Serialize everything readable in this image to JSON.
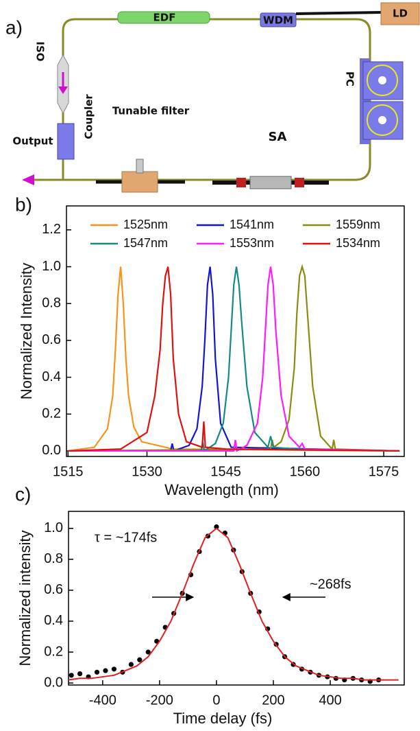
{
  "panels": [
    "a)",
    "b)",
    "c)"
  ],
  "diagram": {
    "labels": [
      "EDF",
      "WDM",
      "LD",
      "ISO",
      "PC",
      "Coupler",
      "Tunable filter",
      "Output",
      "SA"
    ]
  },
  "chart_data": [
    {
      "type": "line",
      "xlabel": "Wavelength (nm)",
      "ylabel": "Normalized Intensity",
      "xlim": [
        1514.7,
        1578.9
      ],
      "ylim": [
        -0.03,
        1.33
      ],
      "xticks": [
        1515,
        1530,
        1545,
        1560,
        1575
      ],
      "yticks": [
        {
          "value": 0,
          "label": "0.0"
        },
        0.2,
        0.4,
        0.6,
        0.8,
        {
          "value": 1,
          "label": "1.0"
        },
        1.2
      ],
      "series": [
        {
          "name": "1525nm",
          "color": "#f7931e",
          "x": [
            1515,
            1520,
            1522.5,
            1523.5,
            1524,
            1524.5,
            1525,
            1525.5,
            1526,
            1526.5,
            1527.5,
            1529,
            1535,
            1578
          ],
          "values": [
            0,
            0.02,
            0.12,
            0.3,
            0.55,
            0.85,
            1.0,
            0.8,
            0.5,
            0.3,
            0.13,
            0.05,
            0.01,
            0
          ]
        },
        {
          "name": "1541nm",
          "color": "#1414d2",
          "x": [
            1515,
            1534.5,
            1534.8,
            1535.1,
            1538,
            1539.5,
            1540.5,
            1541,
            1541.5,
            1542,
            1542.5,
            1543,
            1544,
            1546,
            1578
          ],
          "values": [
            0,
            0,
            0.04,
            0,
            0.03,
            0.12,
            0.35,
            0.6,
            0.9,
            1.0,
            0.85,
            0.5,
            0.15,
            0.02,
            0
          ]
        },
        {
          "name": "1559nm",
          "color": "#8b8b12",
          "x": [
            1515,
            1553.5,
            1553.8,
            1554.1,
            1555.5,
            1557,
            1558,
            1558.5,
            1559,
            1559.5,
            1560,
            1560.5,
            1561.5,
            1563,
            1565.2,
            1565.5,
            1565.8,
            1578
          ],
          "values": [
            0,
            0.01,
            0.06,
            0.02,
            0.05,
            0.17,
            0.45,
            0.75,
            0.95,
            1.0,
            0.95,
            0.75,
            0.35,
            0.08,
            0.01,
            0.06,
            0.01,
            0
          ]
        },
        {
          "name": "1547nm",
          "color": "#138a84",
          "x": [
            1515,
            1540.3,
            1540.6,
            1540.9,
            1543,
            1544.5,
            1545.5,
            1546,
            1546.5,
            1547,
            1547.5,
            1548,
            1549,
            1550.5,
            1553,
            1553.5,
            1554,
            1558,
            1578
          ],
          "values": [
            0,
            0,
            0.05,
            0,
            0.04,
            0.15,
            0.4,
            0.65,
            0.9,
            1.0,
            0.9,
            0.7,
            0.35,
            0.1,
            0.02,
            0.08,
            0.02,
            0.01,
            0
          ]
        },
        {
          "name": "1553nm",
          "color": "#ff1aff",
          "x": [
            1515,
            1546.5,
            1546.8,
            1547.1,
            1549,
            1551,
            1552,
            1552.5,
            1553,
            1553.5,
            1554,
            1554.5,
            1555.5,
            1557,
            1559,
            1559.5,
            1560,
            1578
          ],
          "values": [
            0,
            0,
            0.06,
            0,
            0.03,
            0.15,
            0.4,
            0.65,
            0.9,
            1.0,
            0.9,
            0.65,
            0.3,
            0.08,
            0.02,
            0.04,
            0.01,
            0
          ]
        },
        {
          "name": "1534nm",
          "color": "#e01010",
          "x": [
            1515,
            1525,
            1530,
            1531.5,
            1532.5,
            1533,
            1533.5,
            1534,
            1534.5,
            1535,
            1536,
            1537.5,
            1540.5,
            1540.8,
            1541.1,
            1545,
            1578
          ],
          "values": [
            0,
            0.01,
            0.1,
            0.3,
            0.55,
            0.8,
            0.95,
            1.0,
            0.85,
            0.5,
            0.2,
            0.05,
            0.02,
            0.16,
            0.02,
            0.01,
            0
          ]
        }
      ]
    },
    {
      "type": "scatter",
      "xlabel": "Time delay (fs)",
      "ylabel": "Normalized intensity",
      "xlim": [
        -520,
        660
      ],
      "ylim": [
        -0.013,
        1.11
      ],
      "xticks": [
        -400,
        -200,
        0,
        200,
        400
      ],
      "yticks": [
        {
          "value": 0,
          "label": "0.0"
        },
        0.2,
        0.4,
        0.6,
        0.8,
        {
          "value": 1,
          "label": "1.0"
        }
      ],
      "color": "#000000",
      "x": [
        -510,
        -480,
        -450,
        -420,
        -390,
        -360,
        -330,
        -300,
        -270,
        -240,
        -210,
        -180,
        -150,
        -120,
        -90,
        -60,
        -30,
        0,
        30,
        60,
        90,
        120,
        150,
        180,
        210,
        240,
        270,
        300,
        330,
        360,
        390,
        420,
        450,
        480,
        510,
        540,
        570
      ],
      "values": [
        0.05,
        0.06,
        0.04,
        0.07,
        0.08,
        0.09,
        0.07,
        0.12,
        0.15,
        0.2,
        0.27,
        0.36,
        0.45,
        0.58,
        0.7,
        0.85,
        0.95,
        1.01,
        0.97,
        0.86,
        0.72,
        0.58,
        0.46,
        0.35,
        0.25,
        0.17,
        0.12,
        0.09,
        0.07,
        0.05,
        0.04,
        0.03,
        0.02,
        0.03,
        0.02,
        0.01,
        0.02
      ],
      "fit": {
        "color": "#e02020",
        "x": [
          -520,
          -480,
          -440,
          -400,
          -360,
          -320,
          -280,
          -240,
          -200,
          -160,
          -120,
          -80,
          -40,
          0,
          40,
          80,
          120,
          160,
          200,
          240,
          280,
          320,
          360,
          400,
          440,
          480,
          520,
          560,
          600,
          640
        ],
        "values": [
          0.02,
          0.03,
          0.03,
          0.04,
          0.05,
          0.08,
          0.11,
          0.17,
          0.27,
          0.4,
          0.58,
          0.77,
          0.94,
          1.0,
          0.94,
          0.77,
          0.58,
          0.4,
          0.27,
          0.17,
          0.11,
          0.08,
          0.05,
          0.04,
          0.03,
          0.03,
          0.02,
          0.02,
          0.02,
          0.02
        ]
      },
      "annotations": [
        "τ = ~174fs",
        "~268fs"
      ]
    }
  ]
}
